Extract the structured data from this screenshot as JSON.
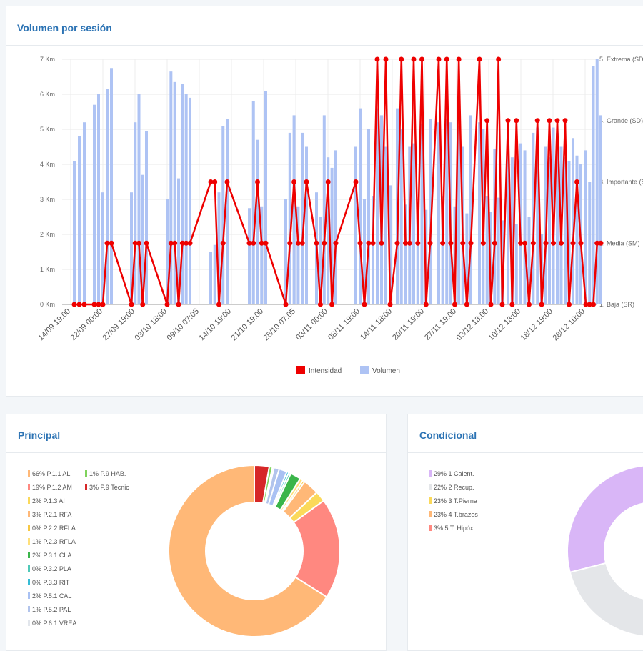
{
  "volumen_card": {
    "title": "Volumen por sesión"
  },
  "principal_card": {
    "title": "Principal"
  },
  "condicional_card": {
    "title": "Condicional"
  },
  "chart_data": [
    {
      "type": "bar+line",
      "title": "Volumen por sesión",
      "y_left": {
        "ticks": [
          "0 Km",
          "1 Km",
          "2 Km",
          "3 Km",
          "4 Km",
          "5 Km",
          "6 Km",
          "7 Km"
        ],
        "range": [
          0,
          7
        ]
      },
      "y_right": {
        "ticks": [
          "1. Baja (SR)",
          "2. Media (SM)",
          "3. Importante (S",
          "4. Grande (SD)",
          "5. Extrema (SD"
        ],
        "range": [
          1,
          5
        ]
      },
      "x_ticks": [
        "14/09 19:00",
        "22/09 00:00",
        "27/09 19:00",
        "03/10 18:00",
        "09/10 07:05",
        "14/10 19:00",
        "21/10 19:00",
        "28/10 07:05",
        "03/11 00:00",
        "08/11 19:00",
        "14/11 18:00",
        "20/11 19:00",
        "27/11 19:00",
        "03/12 18:00",
        "10/12 18:00",
        "18/12 19:00",
        "28/12 10:00"
      ],
      "legend": {
        "position": "bottom",
        "items": [
          {
            "name": "Intensidad",
            "color": "#ee0000"
          },
          {
            "name": "Volumen",
            "color": "#aec3f4"
          }
        ]
      },
      "grid": true,
      "volume_color": "#aec3f4",
      "intensity_color": "#ee0000",
      "volume_km": [
        4.1,
        4.8,
        5.2,
        5.7,
        6.0,
        3.2,
        6.15,
        6.75,
        3.2,
        5.2,
        6.0,
        3.7,
        4.95,
        3.0,
        6.65,
        6.35,
        3.6,
        6.3,
        6.0,
        5.9,
        1.5,
        1.7,
        3.2,
        5.1,
        5.3,
        2.75,
        5.8,
        4.7,
        2.8,
        6.1,
        3.0,
        4.9,
        5.4,
        2.8,
        4.9,
        4.5,
        3.2,
        2.5,
        5.4,
        4.2,
        3.9,
        4.4,
        4.5,
        5.6,
        3.0,
        5.0,
        3.1,
        5.6,
        5.4,
        4.5,
        3.4,
        5.6,
        5.0,
        2.85,
        4.5,
        4.6,
        2.5,
        5.15,
        2.7,
        5.3,
        5.2,
        3.1,
        5.3,
        5.2,
        2.8,
        5.1,
        4.5,
        2.6,
        5.4,
        5.2,
        5.0,
        3.1,
        2.65,
        4.45,
        3.05,
        2.4,
        5.2,
        4.2,
        2.3,
        4.6,
        4.4,
        2.5,
        4.9,
        5.05,
        2.0,
        4.5,
        4.2,
        5.05,
        4.9,
        4.5,
        4.2,
        4.1,
        4.75,
        4.25,
        4.0,
        4.4,
        3.5,
        6.8,
        7.0,
        5.4
      ],
      "intensity_level": [
        1,
        1,
        1,
        1,
        1,
        1,
        2,
        2,
        1,
        2,
        2,
        1,
        2,
        1,
        2,
        2,
        1,
        2,
        2,
        2,
        3,
        3,
        1,
        2,
        3,
        2,
        2,
        3,
        2,
        2,
        1,
        2,
        3,
        2,
        2,
        3,
        2,
        1,
        2,
        3,
        1,
        2,
        3,
        2,
        1,
        2,
        2,
        5,
        2,
        5,
        1,
        2,
        5,
        2,
        2,
        5,
        2,
        5,
        1,
        2,
        5,
        2,
        5,
        2,
        1,
        5,
        2,
        1,
        2,
        5,
        2,
        4,
        1,
        2,
        5,
        1,
        4,
        1,
        4,
        2,
        2,
        1,
        2,
        4,
        1,
        2,
        4,
        2,
        4,
        2,
        4,
        1,
        2,
        3,
        2,
        1,
        1,
        1,
        2,
        2
      ],
      "volume_groups": [
        [
          5,
          19
        ],
        [
          33,
          57
        ],
        [
          85,
          106
        ],
        [
          135,
          167
        ],
        [
          196,
          219
        ],
        [
          250,
          273
        ],
        [
          301,
          330
        ],
        [
          344,
          371
        ],
        [
          399,
          447
        ],
        [
          457,
          503
        ],
        [
          515,
          560
        ],
        [
          572,
          604
        ],
        [
          612,
          665
        ],
        [
          670,
          714
        ],
        [
          721,
          742
        ],
        [
          761,
          787
        ],
        [
          813,
          827
        ]
      ]
    },
    {
      "type": "pie",
      "title": "Principal",
      "legend": {
        "position": "left"
      },
      "slices": [
        {
          "name": "P.1.1 AL",
          "label": "66% P.1.1 AL",
          "value": 66,
          "color": "#ffb877"
        },
        {
          "name": "P.1.2 AM",
          "label": "19% P.1.2 AM",
          "value": 19,
          "color": "#ff8880"
        },
        {
          "name": "P.1.3 AI",
          "label": "2% P.1.3 AI",
          "value": 2,
          "color": "#fbd95a"
        },
        {
          "name": "P.2.1 RFA",
          "label": "3% P.2.1 RFA",
          "value": 3,
          "color": "#ffb877"
        },
        {
          "name": "P.2.2 RFLA",
          "label": "0% P.2.2 RFLA",
          "value": 0.4,
          "color": "#f7c843"
        },
        {
          "name": "P.2.3 RFLA",
          "label": "1% P.2.3 RFLA",
          "value": 0.6,
          "color": "#ffe07a"
        },
        {
          "name": "P.3.1 CLA",
          "label": "2% P.3.1 CLA",
          "value": 2,
          "color": "#3bb54a"
        },
        {
          "name": "P.3.2 PLA",
          "label": "0% P.3.2 PLA",
          "value": 0.4,
          "color": "#4fc9b8"
        },
        {
          "name": "P.3.3 RIT",
          "label": "0% P.3.3 RIT",
          "value": 0.4,
          "color": "#36bcd6"
        },
        {
          "name": "P.5.1 CAL",
          "label": "2% P.5.1 CAL",
          "value": 1.5,
          "color": "#a9c1f3"
        },
        {
          "name": "P.5.2 PAL",
          "label": "1% P.5.2 PAL",
          "value": 1,
          "color": "#b2c4ec"
        },
        {
          "name": "P.6.1 VREA",
          "label": "0% P.6.1 VREA",
          "value": 0.3,
          "color": "#e2e6ec"
        },
        {
          "name": "P.9 HAB.",
          "label": "1% P.9 HAB.",
          "value": 0.6,
          "color": "#7fd35c"
        },
        {
          "name": "P.9 Tecnic",
          "label": "3% P.9 Tecnic",
          "value": 2.8,
          "color": "#d62728"
        }
      ]
    },
    {
      "type": "pie",
      "title": "Condicional",
      "legend": {
        "position": "left"
      },
      "slices": [
        {
          "name": "1 Calent.",
          "label": "29% 1 Calent.",
          "value": 29,
          "color": "#d9b6f7"
        },
        {
          "name": "2 Recup.",
          "label": "22% 2 Recup.",
          "value": 22,
          "color": "#e4e6e9"
        },
        {
          "name": "3 T.Pierna",
          "label": "23% 3 T.Pierna",
          "value": 23,
          "color": "#fbd95a"
        },
        {
          "name": "4 T.brazos",
          "label": "23% 4 T.brazos",
          "value": 23,
          "color": "#ffb877"
        },
        {
          "name": "5 T. Hipóx",
          "label": "3% 5 T. Hipóx",
          "value": 3,
          "color": "#ff8880"
        }
      ]
    }
  ]
}
